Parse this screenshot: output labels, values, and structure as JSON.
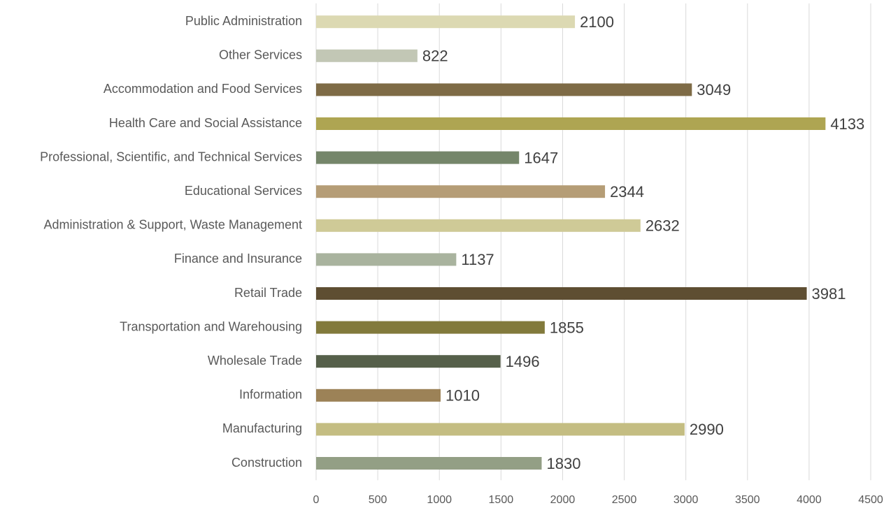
{
  "chart_data": {
    "type": "bar",
    "orientation": "horizontal",
    "categories": [
      "Construction",
      "Manufacturing",
      "Information",
      "Wholesale Trade",
      "Transportation and Warehousing",
      "Retail Trade",
      "Finance and Insurance",
      "Administration & Support, Waste Management",
      "Educational Services",
      "Professional, Scientific, and Technical Services",
      "Health Care and Social Assistance",
      "Accommodation and Food Services",
      "Other Services",
      "Public Administration"
    ],
    "values": [
      1830,
      2990,
      1010,
      1496,
      1855,
      3981,
      1137,
      2632,
      2344,
      1647,
      4133,
      3049,
      822,
      2100
    ],
    "colors": [
      "#939f85",
      "#c4bd82",
      "#9c8257",
      "#56604a",
      "#827a3c",
      "#5e4e32",
      "#a9b39e",
      "#cfca97",
      "#b59d76",
      "#75866a",
      "#aea552",
      "#7e6b46",
      "#c2c7b5",
      "#dcd9b2"
    ],
    "xlim": [
      0,
      4500
    ],
    "xticks": [
      0,
      500,
      1000,
      1500,
      2000,
      2500,
      3000,
      3500,
      4000,
      4500
    ],
    "grid": true
  }
}
